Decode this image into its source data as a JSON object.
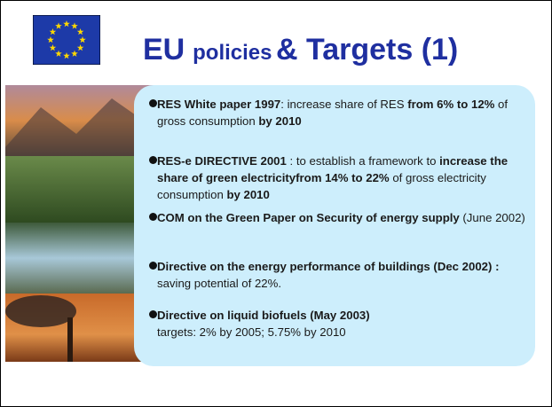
{
  "header": {
    "title": [
      "EU",
      "policies",
      "& Targets (1)"
    ]
  },
  "bullets": [
    [
      "RES White paper 1997",
      ":  increase share of RES ",
      "from 6% to 12%",
      " of gross consumption ",
      "by 2010"
    ],
    [
      "RES-e DIRECTIVE 2001",
      " : to establish a framework to ",
      "increase the share of green electricityfrom 14% to 22%",
      " of gross electricity consumption ",
      "by 2010"
    ],
    [
      "COM on the Green Paper on Security of energy supply",
      " (June 2002)"
    ],
    [
      "Directive on  the energy performance of buildings (Dec 2002) :",
      " saving potential of 22%."
    ],
    [
      "Directive on liquid biofuels (May 2003)",
      "targets: 2% by 2005;  5.75% by 2010"
    ]
  ]
}
